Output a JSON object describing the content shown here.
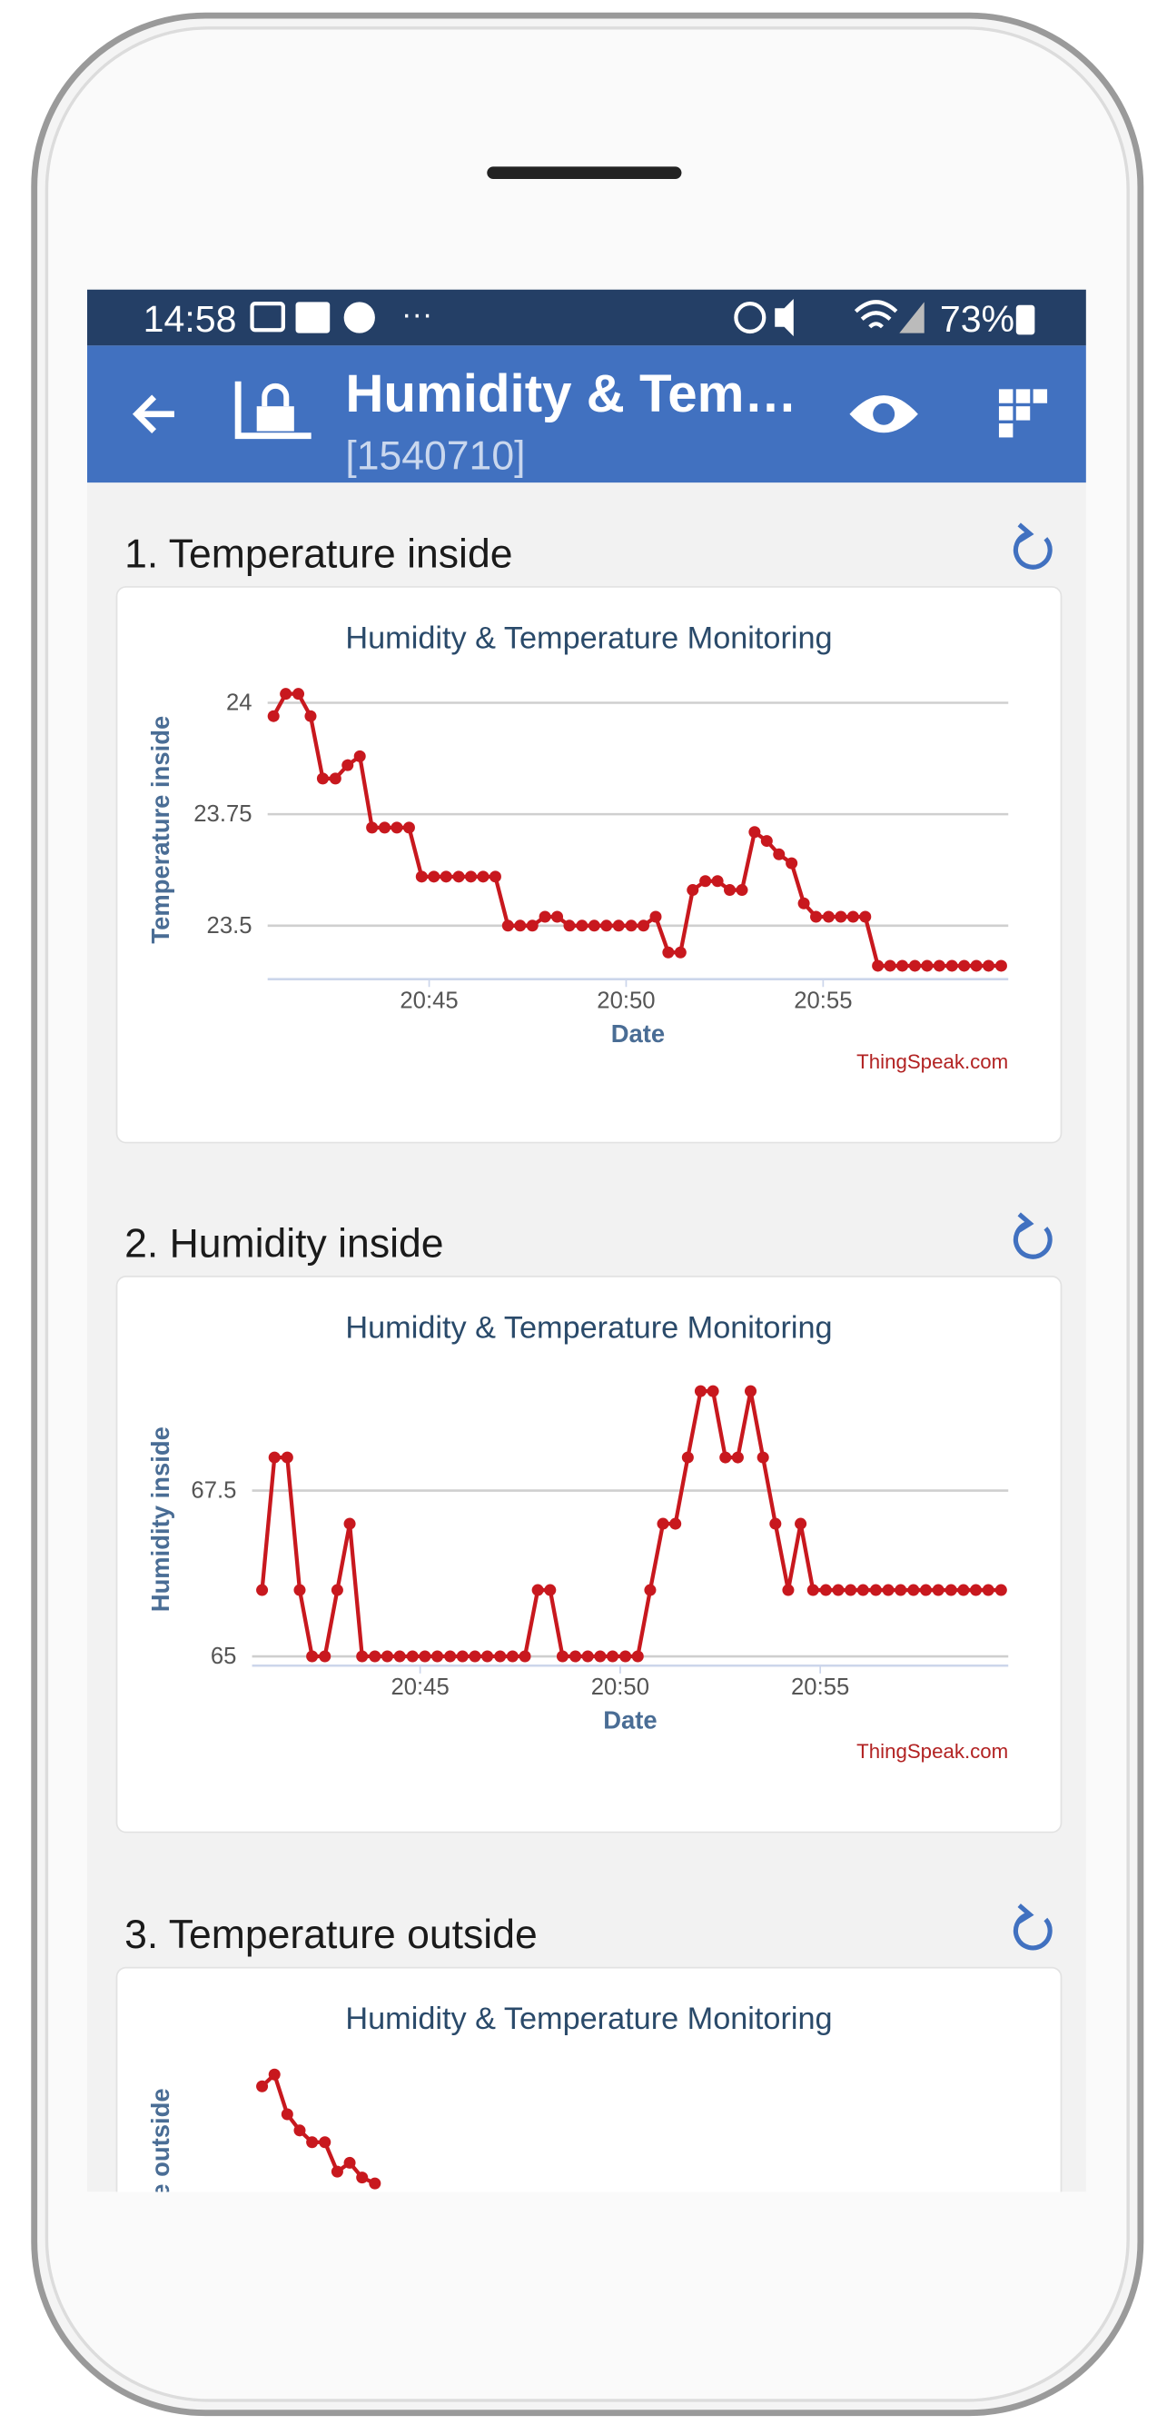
{
  "status_bar": {
    "time": "14:58",
    "battery": "73%"
  },
  "app_bar": {
    "title": "Humidity & Tem…",
    "channel_id": "[1540710]"
  },
  "panels": [
    {
      "heading": "1. Temperature inside",
      "chart": {
        "type": "line",
        "title": "Humidity & Temperature Monitoring",
        "y_label": "Temperature inside",
        "x_label": "Date",
        "credit": "ThingSpeak.com",
        "color": "#c8181e",
        "grid": true,
        "x": [
          41.05,
          41.36,
          41.68,
          41.99,
          42.3,
          42.62,
          42.93,
          43.24,
          43.55,
          43.87,
          44.18,
          44.49,
          44.81,
          45.12,
          45.43,
          45.75,
          46.06,
          46.37,
          46.68,
          47.0,
          47.31,
          47.62,
          47.94,
          48.25,
          48.56,
          48.88,
          49.19,
          49.5,
          49.81,
          50.13,
          50.44,
          50.75,
          51.07,
          51.38,
          51.69,
          52.01,
          52.32,
          52.63,
          52.94,
          53.26,
          53.57,
          53.88,
          54.2,
          54.51,
          54.82,
          55.14,
          55.45,
          55.76,
          56.07,
          56.39,
          56.7,
          57.01,
          57.33,
          57.64,
          57.95,
          58.27,
          58.58,
          58.89,
          59.2,
          59.52
        ],
        "values": [
          23.97,
          24.02,
          24.02,
          23.97,
          23.83,
          23.83,
          23.86,
          23.88,
          23.72,
          23.72,
          23.72,
          23.72,
          23.61,
          23.61,
          23.61,
          23.61,
          23.61,
          23.61,
          23.61,
          23.5,
          23.5,
          23.5,
          23.52,
          23.52,
          23.5,
          23.5,
          23.5,
          23.5,
          23.5,
          23.5,
          23.5,
          23.52,
          23.44,
          23.44,
          23.58,
          23.6,
          23.6,
          23.58,
          23.58,
          23.71,
          23.69,
          23.66,
          23.64,
          23.55,
          23.52,
          23.52,
          23.52,
          23.52,
          23.52,
          23.41,
          23.41,
          23.41,
          23.41,
          23.41,
          23.41,
          23.41,
          23.41,
          23.41,
          23.41,
          23.41
        ],
        "xlim": [
          40.9,
          59.7
        ],
        "ylim": [
          23.38,
          24.04
        ],
        "xticks": [
          {
            "value": 45,
            "label": "20:45"
          },
          {
            "value": 50,
            "label": "20:50"
          },
          {
            "value": 55,
            "label": "20:55"
          }
        ],
        "yticks": [
          23.5,
          23.75,
          24
        ]
      }
    },
    {
      "heading": "2. Humidity inside",
      "chart": {
        "type": "line",
        "title": "Humidity & Temperature Monitoring",
        "y_label": "Humidity inside",
        "x_label": "Date",
        "credit": "ThingSpeak.com",
        "color": "#c8181e",
        "grid": true,
        "x": [
          41.05,
          41.36,
          41.68,
          41.99,
          42.3,
          42.62,
          42.93,
          43.24,
          43.55,
          43.87,
          44.18,
          44.49,
          44.81,
          45.12,
          45.43,
          45.75,
          46.06,
          46.37,
          46.68,
          47.0,
          47.31,
          47.62,
          47.94,
          48.25,
          48.56,
          48.88,
          49.19,
          49.5,
          49.81,
          50.13,
          50.44,
          50.75,
          51.07,
          51.38,
          51.69,
          52.01,
          52.32,
          52.63,
          52.94,
          53.26,
          53.57,
          53.88,
          54.2,
          54.51,
          54.82,
          55.14,
          55.45,
          55.76,
          56.07,
          56.39,
          56.7,
          57.01,
          57.33,
          57.64,
          57.95,
          58.27,
          58.58,
          58.89,
          59.2,
          59.52
        ],
        "values": [
          66,
          68,
          68,
          66,
          65,
          65,
          66,
          67,
          65,
          65,
          65,
          65,
          65,
          65,
          65,
          65,
          65,
          65,
          65,
          65,
          65,
          65,
          66,
          66,
          65,
          65,
          65,
          65,
          65,
          65,
          65,
          66,
          67,
          67,
          68,
          69,
          69,
          68,
          68,
          69,
          68,
          67,
          66,
          67,
          66,
          66,
          66,
          66,
          66,
          66,
          66,
          66,
          66,
          66,
          66,
          66,
          66,
          66,
          66,
          66
        ],
        "xlim": [
          40.8,
          59.7
        ],
        "ylim": [
          64.86,
          69.25
        ],
        "xticks": [
          {
            "value": 45,
            "label": "20:45"
          },
          {
            "value": 50,
            "label": "20:50"
          },
          {
            "value": 55,
            "label": "20:55"
          }
        ],
        "yticks": [
          65,
          67.5
        ]
      }
    },
    {
      "heading": "3. Temperature outside",
      "chart": {
        "type": "line",
        "title": "Humidity & Temperature Monitoring",
        "y_label": "Temperature outside",
        "color": "#c8181e",
        "x": [
          41.05,
          41.36,
          41.68,
          41.99,
          42.3,
          42.62,
          42.93,
          43.24,
          43.55,
          43.87
        ],
        "values": [
          8.86,
          8.94,
          8.67,
          8.56,
          8.48,
          8.48,
          8.28,
          8.34,
          8.24,
          8.2
        ],
        "xlim": [
          40.8,
          59.7
        ],
        "ylim": [
          7,
          9
        ]
      }
    }
  ]
}
